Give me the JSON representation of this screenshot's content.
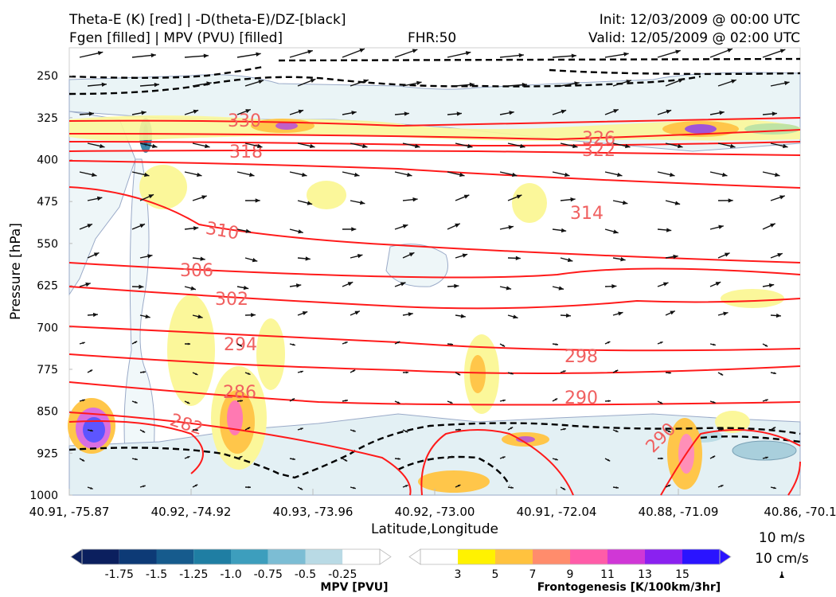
{
  "header": {
    "title_line1": "Theta-E (K) [red] | -D(theta-E)/DZ-[black]",
    "title_line2": "Fgen [filled] | MPV (PVU) [filled]",
    "fhr": "FHR:50",
    "init": "Init: 12/03/2009 @ 00:00 UTC",
    "valid": "Valid: 12/05/2009 @ 02:00 UTC"
  },
  "chart_data": {
    "type": "cross-section",
    "xlabel": "Latitude,Longitude",
    "ylabel": "Pressure [hPa]",
    "x_ticks": [
      "40.91, -75.87",
      "40.92, -74.92",
      "40.93, -73.96",
      "40.92, -73.00",
      "40.91, -72.04",
      "40.88, -71.09",
      "40.86, -70.1"
    ],
    "y_ticks": [
      250,
      325,
      400,
      475,
      550,
      625,
      700,
      775,
      850,
      925,
      1000
    ],
    "ylim": [
      200,
      1000
    ],
    "y_inverted": true,
    "contour_labels_theta_e": [
      "330",
      "318",
      "326",
      "322",
      "314",
      "310",
      "306",
      "302",
      "294",
      "298",
      "286",
      "290",
      "282",
      "290"
    ],
    "theta_e_levels": [
      330,
      326,
      322,
      318,
      314,
      310,
      306,
      302,
      298,
      294,
      290,
      286,
      282
    ],
    "colors": {
      "theta_e": "#ff1a1a",
      "contour_label": "#f06060",
      "static_stability": "#000000",
      "mpv_outline": "#9aaac8"
    }
  },
  "mpv_colorbar": {
    "label": "MPV [PVU]",
    "ticks": [
      "-1.75",
      "-1.5",
      "-1.25",
      "-1.0",
      "-0.75",
      "-0.5",
      "-0.25"
    ],
    "colors": [
      "#0b1f5e",
      "#0d3a76",
      "#165b8d",
      "#1f7ea3",
      "#3d9ebd",
      "#7cbdd4",
      "#b9dae5",
      "#ffffff"
    ]
  },
  "fgen_colorbar": {
    "label": "Frontogenesis [K/100km/3hr]",
    "ticks": [
      "3",
      "5",
      "7",
      "9",
      "11",
      "13",
      "15"
    ],
    "colors": [
      "#ffffff",
      "#fff200",
      "#ffc23e",
      "#ff8c6c",
      "#ff5ca8",
      "#d037d6",
      "#8a21f0",
      "#2a14ff"
    ]
  },
  "vector_legend": {
    "horizontal": "10 m/s",
    "vertical": "10 cm/s"
  }
}
